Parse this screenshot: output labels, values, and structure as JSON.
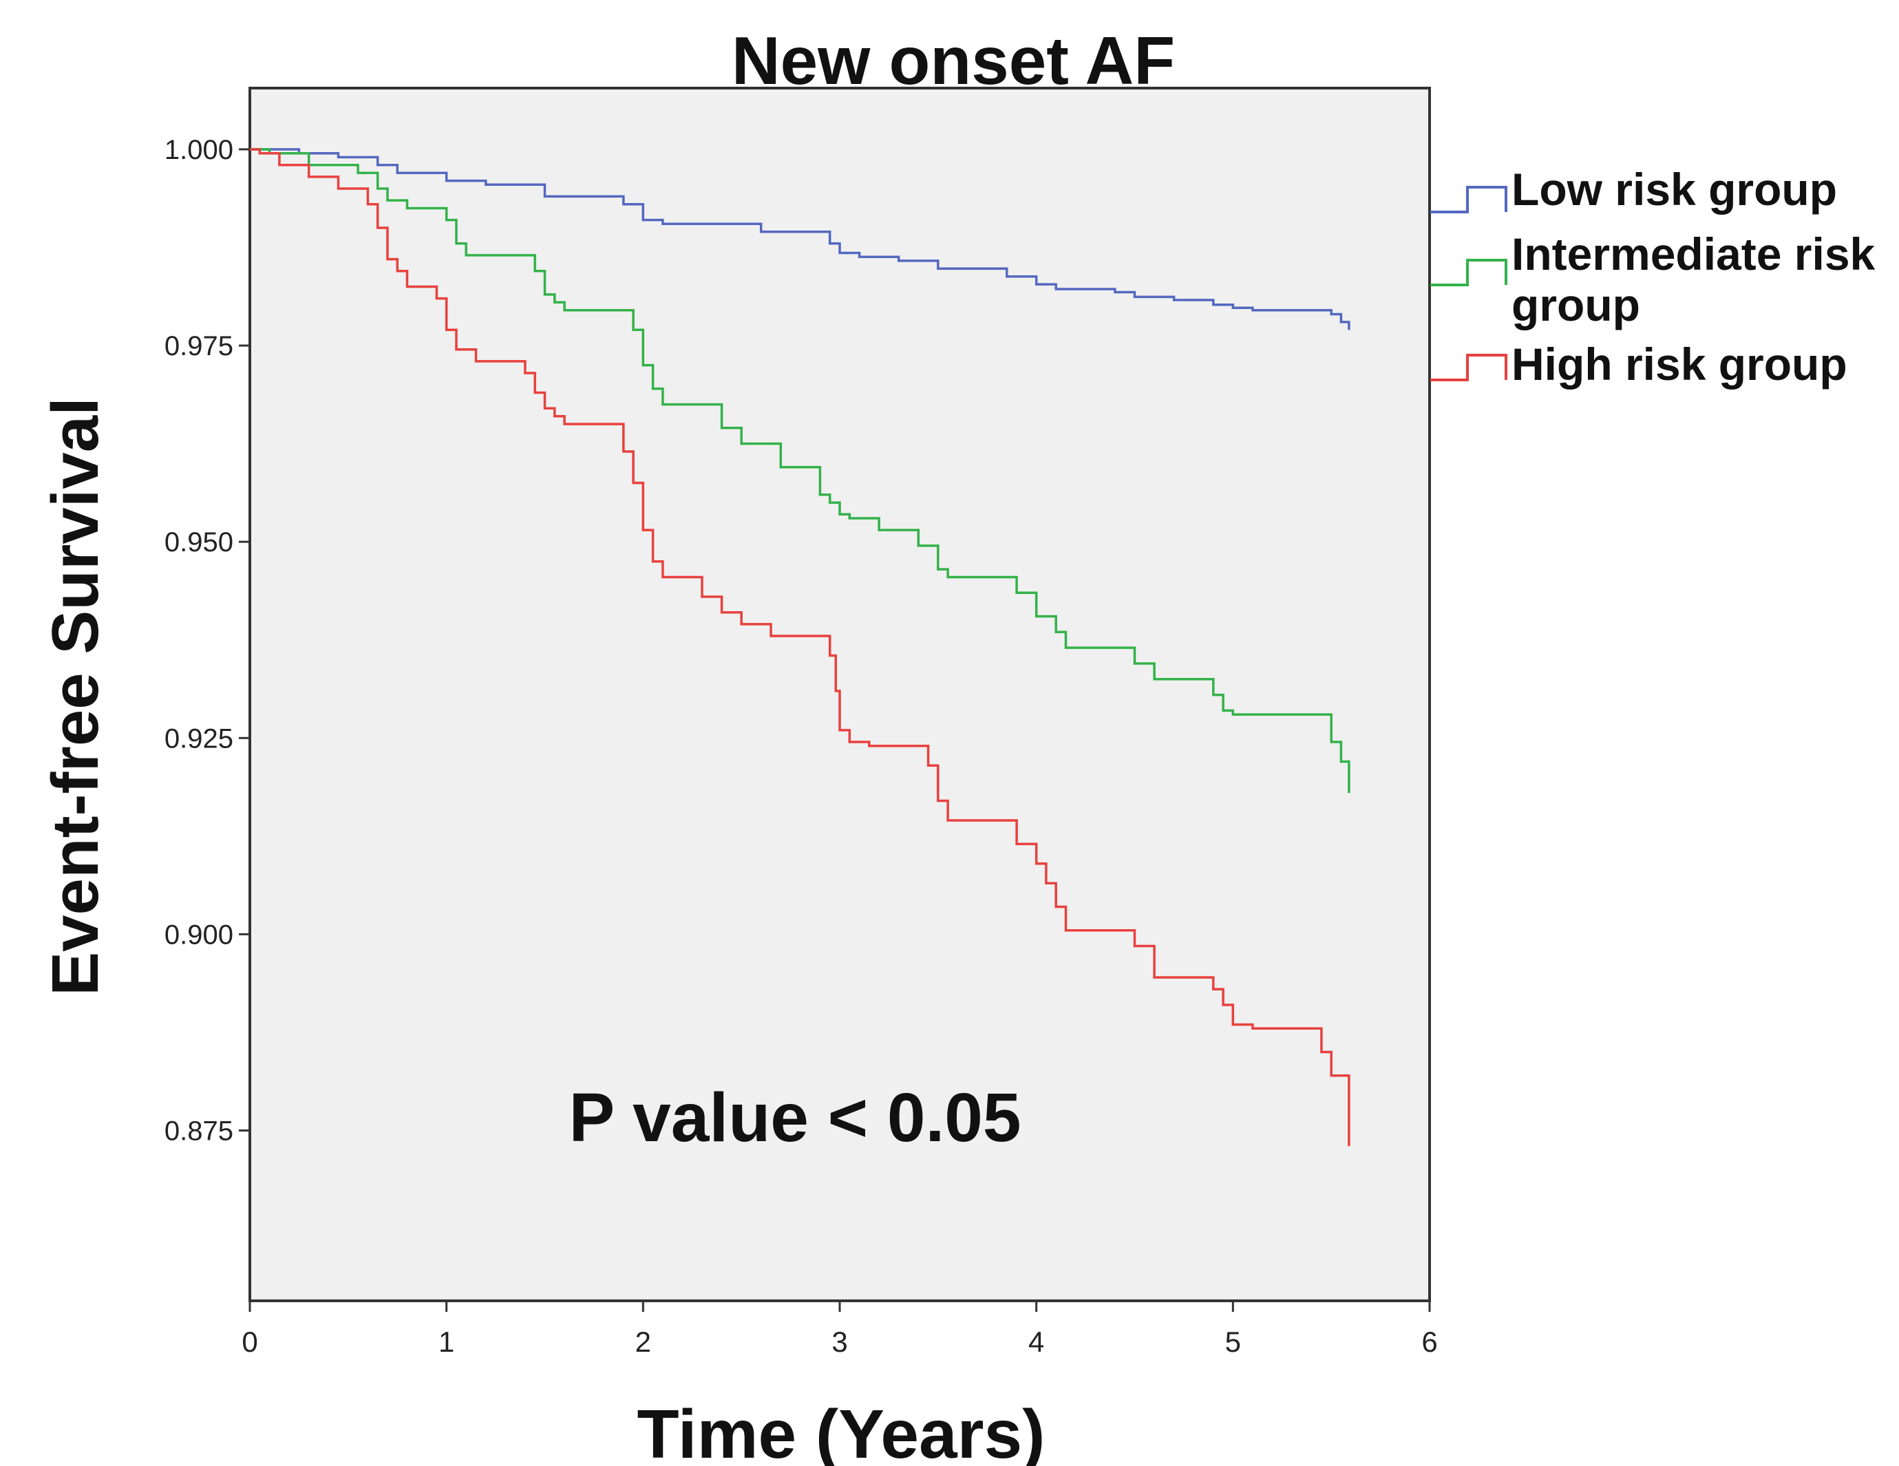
{
  "chart_data": {
    "type": "line",
    "title": "New onset AF",
    "xlabel": "Time (Years)",
    "ylabel": "Event-free Survival",
    "xlim": [
      0,
      6
    ],
    "ylim": [
      0.8533,
      1.0078
    ],
    "x_ticks": [
      "0",
      "1",
      "2",
      "3",
      "4",
      "5",
      "6"
    ],
    "y_ticks": [
      "0.875",
      "0.900",
      "0.925",
      "0.950",
      "0.975",
      "1.000"
    ],
    "grid": false,
    "legend_position": "right",
    "annotation": "P value < 0.05",
    "colors": {
      "plot_background": "#f0f0f0",
      "axis": "#333333"
    },
    "series": [
      {
        "name": "Low risk group",
        "color": "#5468c0",
        "x": [
          0,
          0.25,
          0.45,
          0.65,
          0.75,
          1.0,
          1.2,
          1.5,
          1.9,
          2.0,
          2.1,
          2.6,
          2.95,
          3.0,
          3.1,
          3.3,
          3.5,
          3.85,
          4.0,
          4.1,
          4.4,
          4.5,
          4.7,
          4.9,
          5.0,
          5.1,
          5.3,
          5.5,
          5.55,
          5.59
        ],
        "y": [
          1.0,
          0.9995,
          0.999,
          0.998,
          0.997,
          0.996,
          0.9955,
          0.994,
          0.993,
          0.991,
          0.9905,
          0.9895,
          0.988,
          0.9868,
          0.9863,
          0.9858,
          0.9848,
          0.9838,
          0.9828,
          0.9822,
          0.9818,
          0.9812,
          0.9808,
          0.9802,
          0.9798,
          0.9795,
          0.9795,
          0.979,
          0.978,
          0.977
        ]
      },
      {
        "name": "Intermediate risk group",
        "color": "#33b24a",
        "x": [
          0,
          0.1,
          0.3,
          0.55,
          0.65,
          0.7,
          0.8,
          1.0,
          1.05,
          1.1,
          1.45,
          1.5,
          1.55,
          1.6,
          1.95,
          2.0,
          2.05,
          2.1,
          2.4,
          2.5,
          2.7,
          2.9,
          2.95,
          3.0,
          3.05,
          3.2,
          3.4,
          3.5,
          3.55,
          3.9,
          4.0,
          4.1,
          4.15,
          4.5,
          4.6,
          4.9,
          4.95,
          5.0,
          5.1,
          5.5,
          5.55,
          5.59
        ],
        "y": [
          1.0,
          0.9995,
          0.998,
          0.997,
          0.995,
          0.9935,
          0.9925,
          0.991,
          0.988,
          0.9865,
          0.9845,
          0.9815,
          0.9805,
          0.9795,
          0.977,
          0.9725,
          0.9695,
          0.9675,
          0.9645,
          0.9625,
          0.9595,
          0.956,
          0.955,
          0.9535,
          0.953,
          0.9515,
          0.9495,
          0.9465,
          0.9455,
          0.9435,
          0.9405,
          0.9385,
          0.9365,
          0.9345,
          0.9325,
          0.9305,
          0.9285,
          0.928,
          0.928,
          0.9245,
          0.922,
          0.918
        ]
      },
      {
        "name": "High risk group",
        "color": "#e8413e",
        "x": [
          0,
          0.05,
          0.15,
          0.3,
          0.45,
          0.6,
          0.65,
          0.7,
          0.75,
          0.8,
          0.95,
          1.0,
          1.05,
          1.15,
          1.4,
          1.45,
          1.5,
          1.55,
          1.6,
          1.9,
          1.95,
          2.0,
          2.05,
          2.1,
          2.3,
          2.4,
          2.5,
          2.65,
          2.95,
          2.98,
          3.0,
          3.05,
          3.15,
          3.45,
          3.5,
          3.55,
          3.9,
          4.0,
          4.05,
          4.1,
          4.15,
          4.5,
          4.6,
          4.9,
          4.95,
          5.0,
          5.1,
          5.45,
          5.5,
          5.59
        ],
        "y": [
          1.0,
          0.9995,
          0.998,
          0.9965,
          0.995,
          0.993,
          0.99,
          0.986,
          0.9845,
          0.9825,
          0.981,
          0.977,
          0.9745,
          0.973,
          0.9715,
          0.969,
          0.967,
          0.966,
          0.965,
          0.9615,
          0.9575,
          0.9515,
          0.9475,
          0.9455,
          0.943,
          0.941,
          0.9395,
          0.938,
          0.9355,
          0.931,
          0.926,
          0.9245,
          0.924,
          0.9215,
          0.917,
          0.9145,
          0.9115,
          0.909,
          0.9065,
          0.9035,
          0.9005,
          0.8985,
          0.8945,
          0.893,
          0.891,
          0.8885,
          0.888,
          0.885,
          0.882,
          0.873
        ]
      }
    ]
  }
}
